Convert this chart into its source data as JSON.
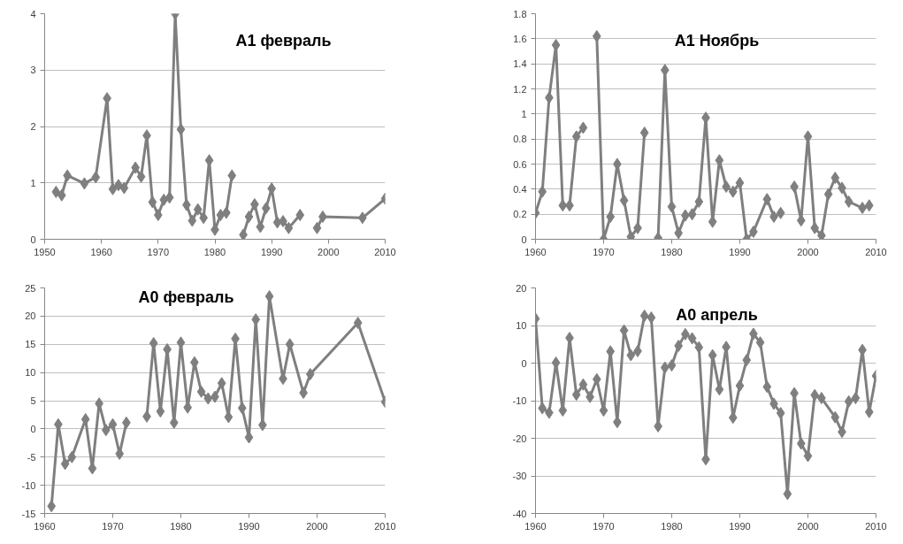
{
  "chart_data": [
    {
      "type": "line",
      "title": "А1 февраль",
      "color": "#7f7f7f",
      "marker": "diamond",
      "line_style": "solid",
      "grid": "y",
      "xlim": [
        1950,
        2010
      ],
      "xticks": [
        1950,
        1960,
        1970,
        1980,
        1990,
        2000,
        2010
      ],
      "ylim": [
        0,
        4
      ],
      "yticks": [
        0,
        1,
        2,
        3,
        4
      ],
      "x": [
        1952,
        1953,
        1954,
        1957,
        1959,
        1961,
        1962,
        1963,
        1964,
        1966,
        1967,
        1968,
        1969,
        1970,
        1971,
        1972,
        1973,
        1974,
        1975,
        1976,
        1977,
        1978,
        1979,
        1980,
        1981,
        1982,
        1983,
        1984,
        1985,
        1986,
        1987,
        1988,
        1989,
        1990,
        1991,
        1992,
        1993,
        1995,
        1996,
        1998,
        1999,
        2006,
        2010
      ],
      "values": [
        0.84,
        0.78,
        1.13,
        0.99,
        1.1,
        2.5,
        0.89,
        0.96,
        0.91,
        1.27,
        1.11,
        1.84,
        0.66,
        0.43,
        0.7,
        0.74,
        4.0,
        1.95,
        0.61,
        0.33,
        0.53,
        0.38,
        1.4,
        0.17,
        0.43,
        0.47,
        1.13,
        null,
        0.08,
        0.4,
        0.62,
        0.22,
        0.55,
        0.9,
        0.3,
        0.32,
        0.2,
        0.43,
        null,
        0.2,
        0.4,
        0.38,
        0.72
      ]
    },
    {
      "type": "line",
      "title": "А1 Ноябрь",
      "color": "#7f7f7f",
      "marker": "diamond",
      "line_style": "solid",
      "grid": "y",
      "xlim": [
        1960,
        2010
      ],
      "xticks": [
        1960,
        1970,
        1980,
        1990,
        2000,
        2010
      ],
      "ylim": [
        0,
        1.8
      ],
      "yticks": [
        0,
        0.2,
        0.4,
        0.6,
        0.8,
        1,
        1.2,
        1.4,
        1.6,
        1.8
      ],
      "x": [
        1960,
        1961,
        1962,
        1963,
        1964,
        1965,
        1966,
        1967,
        1968,
        1969,
        1970,
        1971,
        1972,
        1973,
        1974,
        1975,
        1976,
        1977,
        1978,
        1979,
        1980,
        1981,
        1982,
        1983,
        1984,
        1985,
        1986,
        1987,
        1988,
        1989,
        1990,
        1991,
        1992,
        1994,
        1995,
        1996,
        1997,
        1998,
        1999,
        2000,
        2001,
        2002,
        2003,
        2004,
        2005,
        2006,
        2008,
        2009
      ],
      "values": [
        0.21,
        0.38,
        1.13,
        1.55,
        0.27,
        0.27,
        0.82,
        0.89,
        null,
        1.62,
        0,
        0.18,
        0.6,
        0.31,
        0.02,
        0.09,
        0.85,
        null,
        0.01,
        1.35,
        0.26,
        0.05,
        0.19,
        0.2,
        0.3,
        0.97,
        0.14,
        0.63,
        0.42,
        0.38,
        0.45,
        0,
        0.06,
        0.32,
        0.18,
        0.21,
        null,
        0.42,
        0.15,
        0.82,
        0.09,
        0.03,
        0.36,
        0.49,
        0.41,
        0.3,
        0.25,
        0.27
      ]
    },
    {
      "type": "line",
      "title": "А0 февраль",
      "color": "#7f7f7f",
      "marker": "diamond",
      "line_style": "solid",
      "grid": "y",
      "xlim": [
        1960,
        2010
      ],
      "xticks": [
        1960,
        1970,
        1980,
        1990,
        2000,
        2010
      ],
      "ylim": [
        -15,
        25
      ],
      "yticks": [
        -15,
        -10,
        -5,
        0,
        5,
        10,
        15,
        20,
        25
      ],
      "x": [
        1961,
        1962,
        1963,
        1964,
        1966,
        1967,
        1968,
        1969,
        1970,
        1971,
        1972,
        1973,
        1975,
        1976,
        1977,
        1978,
        1979,
        1980,
        1981,
        1982,
        1983,
        1984,
        1985,
        1986,
        1987,
        1988,
        1989,
        1990,
        1991,
        1992,
        1993,
        1995,
        1996,
        1998,
        1999,
        2006,
        2010
      ],
      "values": [
        -13.7,
        0.8,
        -6.2,
        -5,
        1.7,
        -7,
        4.5,
        -0.2,
        0.8,
        -4.4,
        1.1,
        null,
        2.2,
        15.2,
        3.1,
        14.1,
        1.1,
        15.3,
        3.8,
        11.8,
        6.6,
        5.4,
        5.7,
        8.1,
        2.1,
        16,
        3.7,
        -1.5,
        19.4,
        0.7,
        23.5,
        8.9,
        15,
        6.4,
        9.7,
        18.8,
        4.8
      ]
    },
    {
      "type": "line",
      "title": "А0 апрель",
      "color": "#7f7f7f",
      "marker": "diamond",
      "line_style": "solid",
      "grid": "y",
      "xlim": [
        1960,
        2010
      ],
      "xticks": [
        1960,
        1970,
        1980,
        1990,
        2000,
        2010
      ],
      "ylim": [
        -40,
        20
      ],
      "yticks": [
        -40,
        -30,
        -20,
        -10,
        0,
        10,
        20
      ],
      "x": [
        1960,
        1961,
        1962,
        1963,
        1964,
        1965,
        1966,
        1967,
        1968,
        1969,
        1970,
        1971,
        1972,
        1973,
        1974,
        1975,
        1976,
        1977,
        1978,
        1979,
        1980,
        1981,
        1982,
        1983,
        1984,
        1985,
        1986,
        1987,
        1988,
        1989,
        1990,
        1991,
        1992,
        1993,
        1994,
        1995,
        1996,
        1997,
        1998,
        1999,
        2000,
        2001,
        2002,
        2004,
        2005,
        2006,
        2007,
        2008,
        2009,
        2010
      ],
      "values": [
        11.8,
        -12,
        -13.2,
        0.1,
        -12.6,
        6.7,
        -8.4,
        -5.7,
        -9,
        -4.3,
        -12.6,
        3.1,
        -15.7,
        8.7,
        2.1,
        3.2,
        12.6,
        12.1,
        -16.8,
        -1.2,
        -0.6,
        4.6,
        7.7,
        6.6,
        4.2,
        -25.6,
        2.1,
        -7,
        4.3,
        -14.5,
        -6,
        0.8,
        7.8,
        5.5,
        -6.3,
        -10.8,
        -13.3,
        -34.8,
        -8,
        -21.4,
        -24.7,
        -8.5,
        -9.3,
        -14.4,
        -18.3,
        -10.2,
        -9.3,
        3.5,
        -13,
        -3.4
      ]
    }
  ]
}
